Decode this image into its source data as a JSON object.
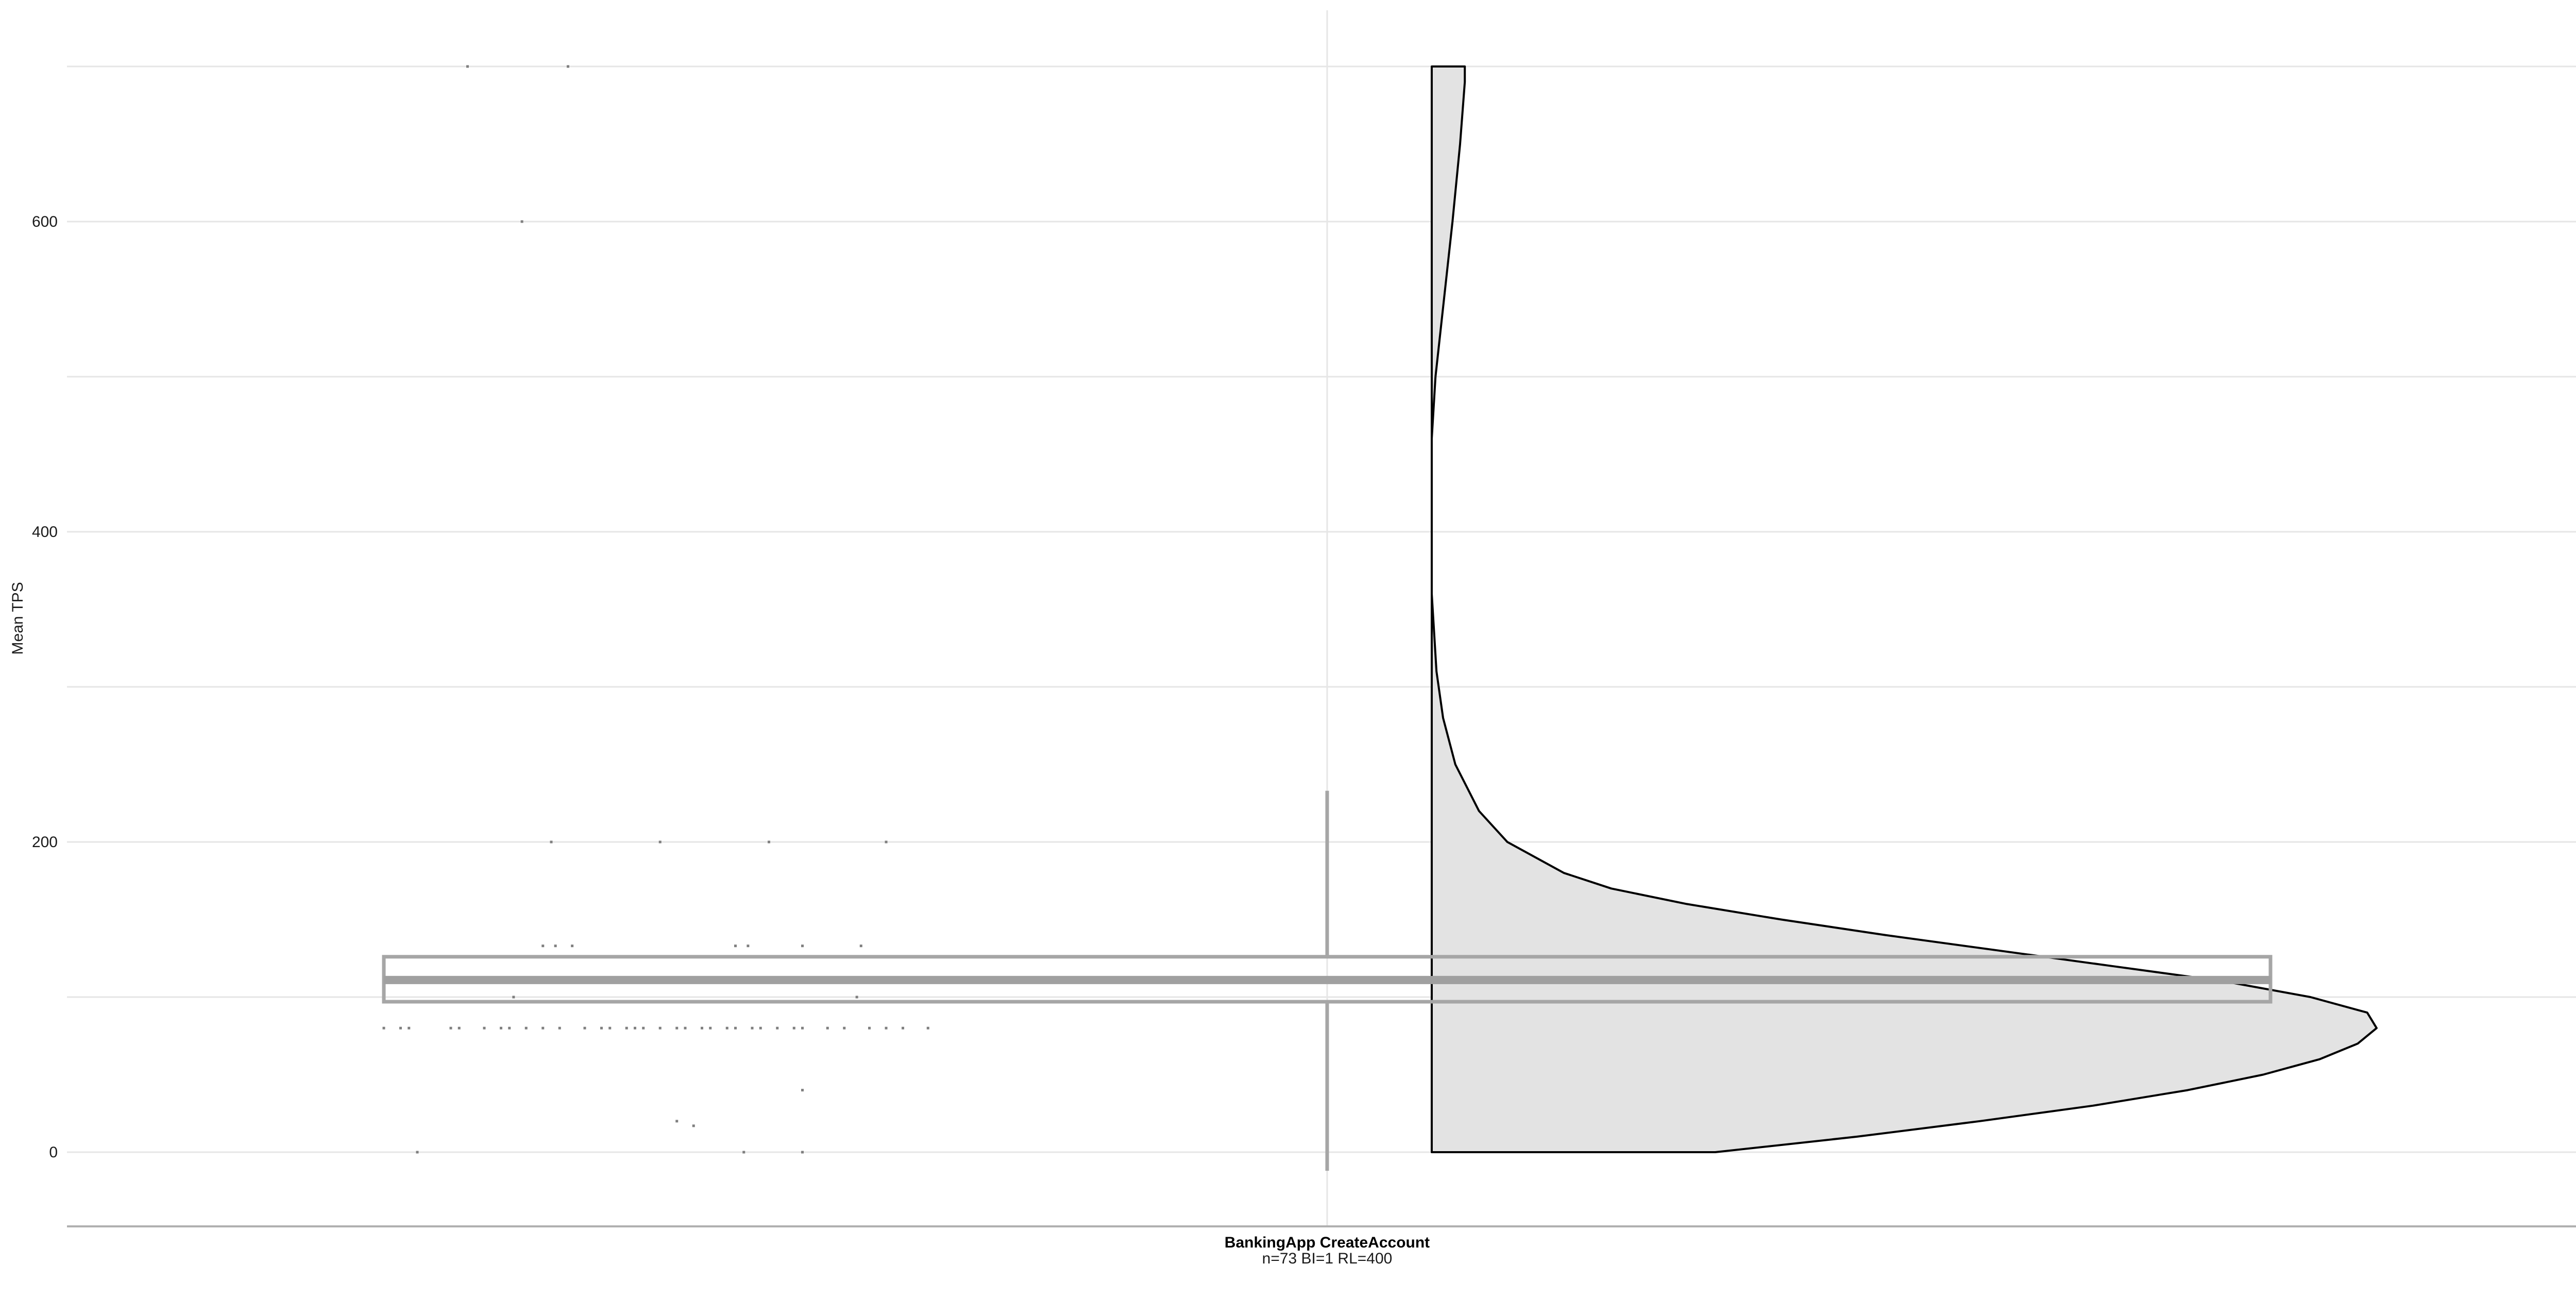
{
  "chart_data": {
    "type": "violin",
    "xlabel": "",
    "ylabel": "Mean TPS",
    "ylim": [
      -47,
      700
    ],
    "yticks": [
      0,
      200,
      400,
      600
    ],
    "category": {
      "name": "BankingApp CreateAccount",
      "subtitle": "n=73 BI=1 RL=400"
    },
    "boxplot": {
      "q1": 97,
      "median": 111,
      "q3": 126,
      "whisker_low": -12,
      "whisker_high": 233
    },
    "half_violin_density": [
      {
        "y": 0,
        "w": 0.3
      },
      {
        "y": 10,
        "w": 0.45
      },
      {
        "y": 20,
        "w": 0.58
      },
      {
        "y": 30,
        "w": 0.7
      },
      {
        "y": 40,
        "w": 0.8
      },
      {
        "y": 50,
        "w": 0.88
      },
      {
        "y": 60,
        "w": 0.94
      },
      {
        "y": 70,
        "w": 0.98
      },
      {
        "y": 80,
        "w": 1.0
      },
      {
        "y": 90,
        "w": 0.99
      },
      {
        "y": 100,
        "w": 0.93
      },
      {
        "y": 110,
        "w": 0.84
      },
      {
        "y": 120,
        "w": 0.72
      },
      {
        "y": 130,
        "w": 0.6
      },
      {
        "y": 140,
        "w": 0.48
      },
      {
        "y": 150,
        "w": 0.37
      },
      {
        "y": 160,
        "w": 0.27
      },
      {
        "y": 170,
        "w": 0.19
      },
      {
        "y": 180,
        "w": 0.14
      },
      {
        "y": 200,
        "w": 0.08
      },
      {
        "y": 220,
        "w": 0.05
      },
      {
        "y": 250,
        "w": 0.025
      },
      {
        "y": 280,
        "w": 0.012
      },
      {
        "y": 310,
        "w": 0.005
      },
      {
        "y": 340,
        "w": 0.002
      },
      {
        "y": 360,
        "w": 0.0
      },
      {
        "y": 460,
        "w": 0.0
      },
      {
        "y": 500,
        "w": 0.004
      },
      {
        "y": 550,
        "w": 0.013
      },
      {
        "y": 600,
        "w": 0.022
      },
      {
        "y": 650,
        "w": 0.03
      },
      {
        "y": 690,
        "w": 0.035
      },
      {
        "y": 700,
        "w": 0.035
      }
    ],
    "points": [
      {
        "x": 0.1,
        "y": 700
      },
      {
        "x": 0.22,
        "y": 700
      },
      {
        "x": 0.165,
        "y": 600
      },
      {
        "x": 0.2,
        "y": 200
      },
      {
        "x": 0.33,
        "y": 200
      },
      {
        "x": 0.46,
        "y": 200
      },
      {
        "x": 0.6,
        "y": 200
      },
      {
        "x": 0.19,
        "y": 133
      },
      {
        "x": 0.205,
        "y": 133
      },
      {
        "x": 0.225,
        "y": 133
      },
      {
        "x": 0.42,
        "y": 133
      },
      {
        "x": 0.435,
        "y": 133
      },
      {
        "x": 0.5,
        "y": 133
      },
      {
        "x": 0.57,
        "y": 133
      },
      {
        "x": 0.155,
        "y": 100
      },
      {
        "x": 0.565,
        "y": 100
      },
      {
        "x": 0.0,
        "y": 80
      },
      {
        "x": 0.02,
        "y": 80
      },
      {
        "x": 0.03,
        "y": 80
      },
      {
        "x": 0.08,
        "y": 80
      },
      {
        "x": 0.09,
        "y": 80
      },
      {
        "x": 0.12,
        "y": 80
      },
      {
        "x": 0.14,
        "y": 80
      },
      {
        "x": 0.15,
        "y": 80
      },
      {
        "x": 0.17,
        "y": 80
      },
      {
        "x": 0.19,
        "y": 80
      },
      {
        "x": 0.21,
        "y": 80
      },
      {
        "x": 0.24,
        "y": 80
      },
      {
        "x": 0.26,
        "y": 80
      },
      {
        "x": 0.27,
        "y": 80
      },
      {
        "x": 0.29,
        "y": 80
      },
      {
        "x": 0.3,
        "y": 80
      },
      {
        "x": 0.31,
        "y": 80
      },
      {
        "x": 0.33,
        "y": 80
      },
      {
        "x": 0.35,
        "y": 80
      },
      {
        "x": 0.36,
        "y": 80
      },
      {
        "x": 0.38,
        "y": 80
      },
      {
        "x": 0.39,
        "y": 80
      },
      {
        "x": 0.41,
        "y": 80
      },
      {
        "x": 0.42,
        "y": 80
      },
      {
        "x": 0.44,
        "y": 80
      },
      {
        "x": 0.45,
        "y": 80
      },
      {
        "x": 0.47,
        "y": 80
      },
      {
        "x": 0.49,
        "y": 80
      },
      {
        "x": 0.5,
        "y": 80
      },
      {
        "x": 0.53,
        "y": 80
      },
      {
        "x": 0.55,
        "y": 80
      },
      {
        "x": 0.58,
        "y": 80
      },
      {
        "x": 0.6,
        "y": 80
      },
      {
        "x": 0.62,
        "y": 80
      },
      {
        "x": 0.65,
        "y": 80
      },
      {
        "x": 0.5,
        "y": 40
      },
      {
        "x": 0.35,
        "y": 20
      },
      {
        "x": 0.37,
        "y": 17
      },
      {
        "x": 0.04,
        "y": 0
      },
      {
        "x": 0.43,
        "y": 0
      },
      {
        "x": 0.5,
        "y": 0
      }
    ],
    "grid": true,
    "colors": {
      "violin_fill": "#e3e3e3",
      "violin_stroke": "#000000",
      "box_stroke": "#a6a6a6",
      "median": "#a0a0a0",
      "point": "#7f7f7f",
      "grid": "#e6e6e6"
    }
  }
}
